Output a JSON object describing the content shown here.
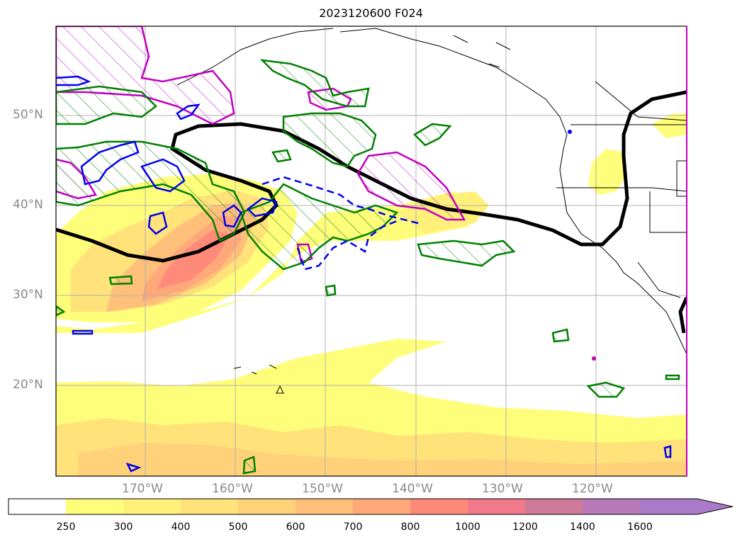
{
  "title": "2023120600 F024",
  "lat_labels": [
    "50°N",
    "40°N",
    "30°N",
    "20°N"
  ],
  "lon_labels": [
    "170°W",
    "160°W",
    "150°W",
    "140°W",
    "130°W",
    "120°W"
  ],
  "colorbar": {
    "levels": [
      "250",
      "300",
      "400",
      "500",
      "600",
      "700",
      "800",
      "1000",
      "1200",
      "1400",
      "1600"
    ],
    "colors": [
      "#ffffff",
      "#fffe7a",
      "#fff07a",
      "#ffe27a",
      "#ffd27a",
      "#ffc07a",
      "#ffa87a",
      "#ff8a7a",
      "#f07a8a",
      "#d07a9a",
      "#b87ab8",
      "#a87ac8"
    ]
  },
  "overlay_colors": {
    "jet_contour": "#000000",
    "green_contour": "#008000",
    "magenta_contour": "#c000c0",
    "blue_contour": "#0000ee"
  }
}
